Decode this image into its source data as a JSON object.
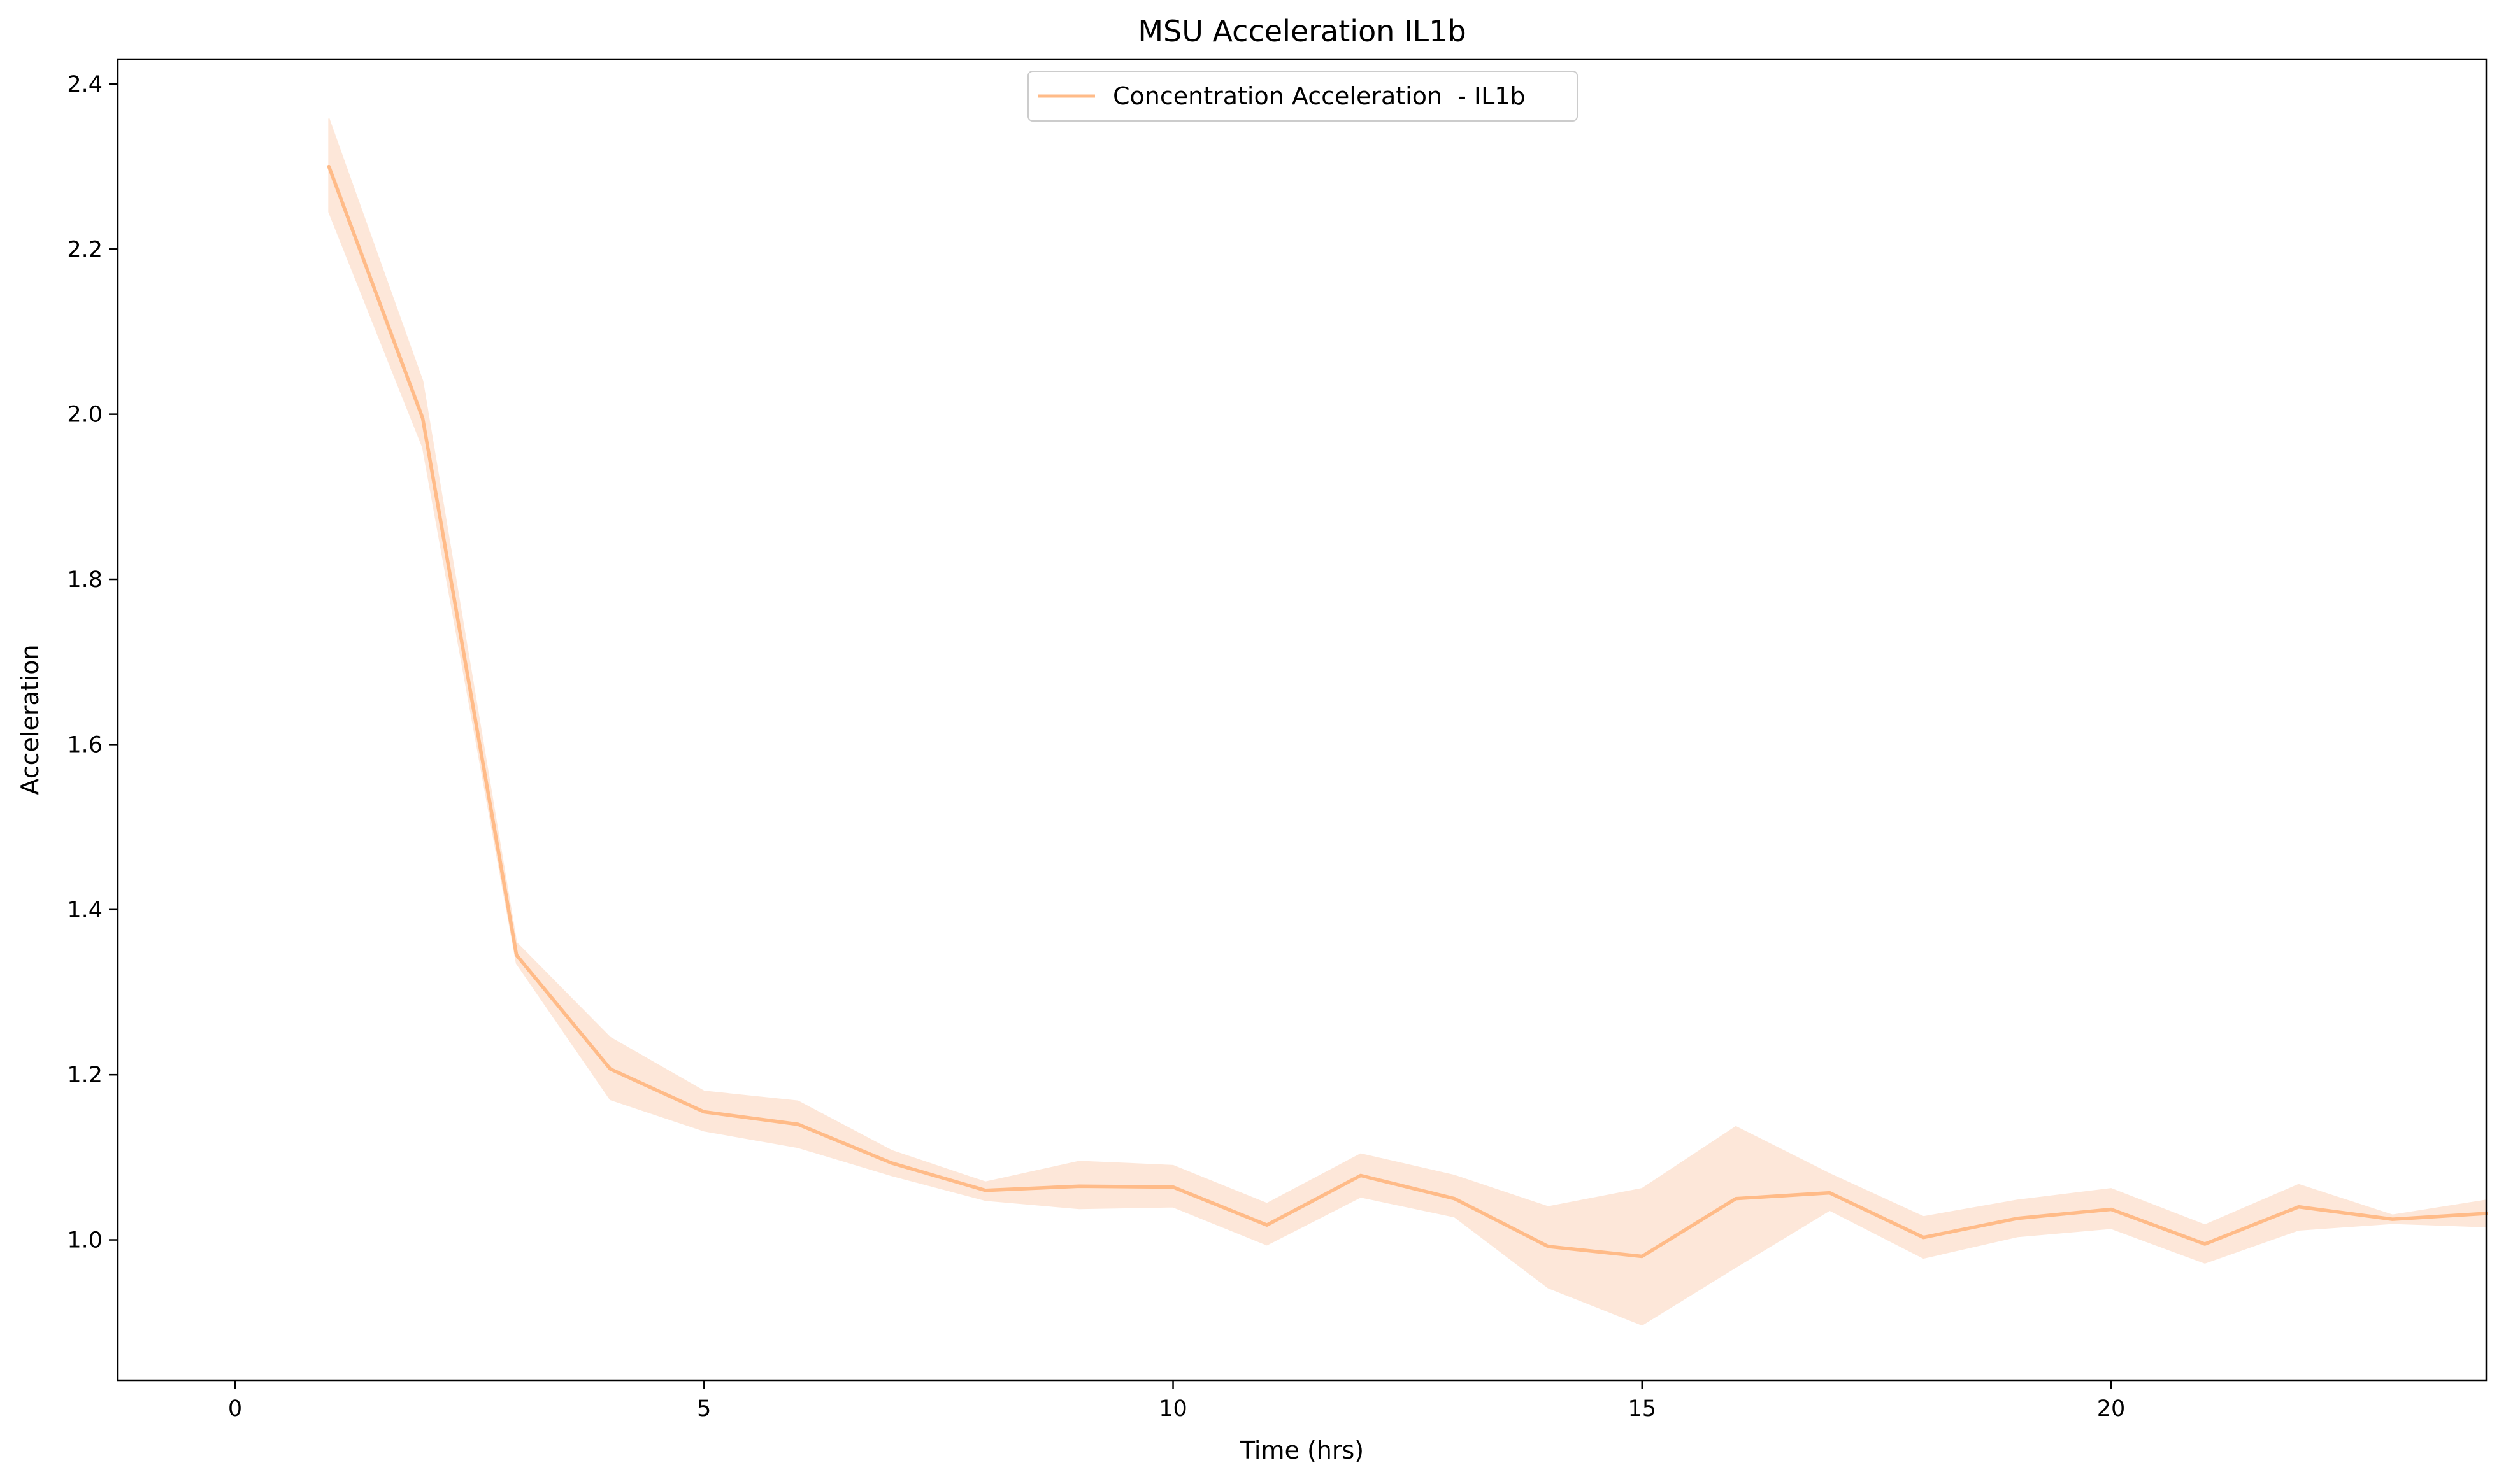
{
  "chart_data": {
    "type": "line",
    "title": "MSU Acceleration IL1b",
    "xlabel": "Time (hrs)",
    "ylabel": "Acceleration",
    "xlim": [
      -1.25,
      24
    ],
    "ylim": [
      0.83,
      2.43
    ],
    "xticks": [
      0,
      5,
      10,
      15,
      20
    ],
    "yticks": [
      1.0,
      1.2,
      1.4,
      1.6,
      1.8,
      2.0,
      2.2,
      2.4
    ],
    "grid": false,
    "legend_position": "upper-center",
    "colors": {
      "line": "#ffbb88",
      "band": "#fde7d9"
    },
    "series": [
      {
        "name": "Concentration Acceleration  - IL1b",
        "x": [
          1,
          2,
          3,
          4,
          5,
          6,
          7,
          8,
          9,
          10,
          11,
          12,
          13,
          14,
          15,
          16,
          17,
          18,
          19,
          20,
          21,
          22,
          23,
          24
        ],
        "y": [
          2.3,
          1.995,
          1.345,
          1.207,
          1.155,
          1.14,
          1.093,
          1.06,
          1.065,
          1.064,
          1.018,
          1.078,
          1.05,
          0.992,
          0.98,
          1.05,
          1.057,
          1.003,
          1.026,
          1.037,
          0.995,
          1.04,
          1.025,
          1.032
        ],
        "lower": [
          2.245,
          1.96,
          1.335,
          1.17,
          1.132,
          1.112,
          1.078,
          1.048,
          1.038,
          1.04,
          0.994,
          1.052,
          1.028,
          0.942,
          0.897,
          0.967,
          1.036,
          0.978,
          1.004,
          1.014,
          0.972,
          1.012,
          1.02,
          1.016
        ],
        "upper": [
          2.358,
          2.04,
          1.36,
          1.245,
          1.18,
          1.168,
          1.108,
          1.07,
          1.095,
          1.09,
          1.044,
          1.104,
          1.078,
          1.04,
          1.062,
          1.137,
          1.08,
          1.028,
          1.048,
          1.062,
          1.018,
          1.067,
          1.03,
          1.048
        ]
      }
    ]
  }
}
